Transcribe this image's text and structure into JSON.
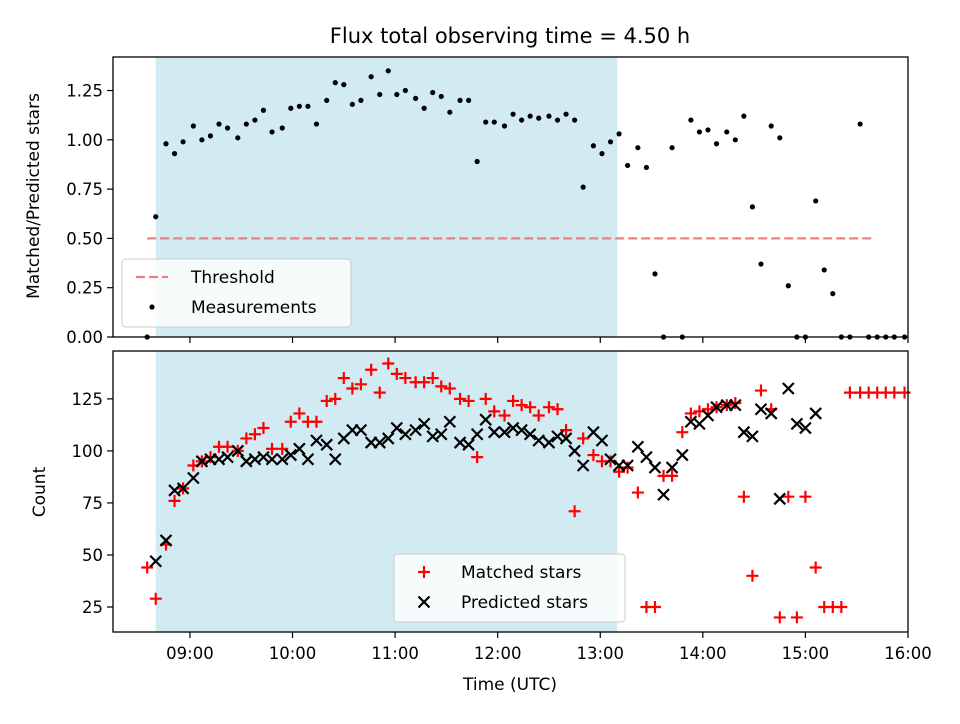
{
  "chart_data": [
    {
      "type": "scatter",
      "title": "Flux total observing time = 4.50 h",
      "ylabel": "Matched/Predicted stars",
      "xlabel": "",
      "ylim": [
        0,
        1.42
      ],
      "y_ticks": [
        "0.00",
        "0.25",
        "0.50",
        "0.75",
        "1.00",
        "1.25"
      ],
      "x_ticks": [
        "09:00",
        "10:00",
        "11:00",
        "12:00",
        "13:00",
        "14:00",
        "15:00",
        "16:00"
      ],
      "x_tick_labels_visible": false,
      "shaded_region": {
        "start": "08:40",
        "end": "13:10",
        "color": "#add8e6"
      },
      "legend": {
        "position": "lower-left",
        "entries": [
          "Threshold",
          "Measurements"
        ]
      },
      "series": [
        {
          "name": "Threshold",
          "kind": "dashed-line",
          "color": "#f08080",
          "points": [
            [
              "08:35",
              0.5
            ],
            [
              "15:40",
              0.5
            ]
          ]
        },
        {
          "name": "Measurements",
          "kind": "scatter",
          "color": "#000000",
          "points": [
            [
              "08:35",
              0.0
            ],
            [
              "08:40",
              0.61
            ],
            [
              "08:46",
              0.98
            ],
            [
              "08:51",
              0.93
            ],
            [
              "08:56",
              0.99
            ],
            [
              "09:02",
              1.07
            ],
            [
              "09:07",
              1.0
            ],
            [
              "09:12",
              1.02
            ],
            [
              "09:17",
              1.08
            ],
            [
              "09:22",
              1.06
            ],
            [
              "09:28",
              1.01
            ],
            [
              "09:33",
              1.08
            ],
            [
              "09:38",
              1.1
            ],
            [
              "09:43",
              1.15
            ],
            [
              "09:48",
              1.04
            ],
            [
              "09:54",
              1.06
            ],
            [
              "09:59",
              1.16
            ],
            [
              "10:04",
              1.17
            ],
            [
              "10:09",
              1.17
            ],
            [
              "10:14",
              1.08
            ],
            [
              "10:20",
              1.2
            ],
            [
              "10:25",
              1.29
            ],
            [
              "10:30",
              1.28
            ],
            [
              "10:35",
              1.18
            ],
            [
              "10:40",
              1.2
            ],
            [
              "10:46",
              1.32
            ],
            [
              "10:51",
              1.23
            ],
            [
              "10:56",
              1.35
            ],
            [
              "11:01",
              1.23
            ],
            [
              "11:06",
              1.25
            ],
            [
              "11:12",
              1.21
            ],
            [
              "11:17",
              1.16
            ],
            [
              "11:22",
              1.24
            ],
            [
              "11:27",
              1.22
            ],
            [
              "11:32",
              1.14
            ],
            [
              "11:38",
              1.2
            ],
            [
              "11:43",
              1.2
            ],
            [
              "11:48",
              0.89
            ],
            [
              "11:53",
              1.09
            ],
            [
              "11:58",
              1.09
            ],
            [
              "12:04",
              1.07
            ],
            [
              "12:09",
              1.13
            ],
            [
              "12:14",
              1.1
            ],
            [
              "12:19",
              1.12
            ],
            [
              "12:24",
              1.11
            ],
            [
              "12:30",
              1.12
            ],
            [
              "12:35",
              1.1
            ],
            [
              "12:40",
              1.13
            ],
            [
              "12:45",
              1.1
            ],
            [
              "12:50",
              0.76
            ],
            [
              "12:56",
              0.97
            ],
            [
              "13:01",
              0.93
            ],
            [
              "13:06",
              0.99
            ],
            [
              "13:11",
              1.03
            ],
            [
              "13:16",
              0.87
            ],
            [
              "13:22",
              0.96
            ],
            [
              "13:27",
              0.86
            ],
            [
              "13:32",
              0.32
            ],
            [
              "13:37",
              0.0
            ],
            [
              "13:42",
              0.96
            ],
            [
              "13:48",
              0.0
            ],
            [
              "13:53",
              1.1
            ],
            [
              "13:58",
              1.04
            ],
            [
              "14:03",
              1.05
            ],
            [
              "14:08",
              0.98
            ],
            [
              "14:14",
              1.04
            ],
            [
              "14:19",
              1.0
            ],
            [
              "14:24",
              1.12
            ],
            [
              "14:29",
              0.66
            ],
            [
              "14:34",
              0.37
            ],
            [
              "14:40",
              1.07
            ],
            [
              "14:45",
              1.01
            ],
            [
              "14:50",
              0.26
            ],
            [
              "14:55",
              0.0
            ],
            [
              "15:00",
              0.0
            ],
            [
              "15:06",
              0.69
            ],
            [
              "15:11",
              0.34
            ],
            [
              "15:16",
              0.22
            ],
            [
              "15:21",
              0.0
            ],
            [
              "15:26",
              0.0
            ],
            [
              "15:32",
              1.08
            ],
            [
              "15:37",
              0.0
            ],
            [
              "15:42",
              0.0
            ],
            [
              "15:47",
              0.0
            ],
            [
              "15:52",
              0.0
            ],
            [
              "15:58",
              0.0
            ]
          ]
        }
      ]
    },
    {
      "type": "scatter",
      "title": "",
      "xlabel": "Time (UTC)",
      "ylabel": "Count",
      "ylim": [
        13,
        148
      ],
      "y_ticks": [
        "25",
        "50",
        "75",
        "100",
        "125"
      ],
      "x_ticks": [
        "09:00",
        "10:00",
        "11:00",
        "12:00",
        "13:00",
        "14:00",
        "15:00",
        "16:00"
      ],
      "shaded_region": {
        "start": "08:40",
        "end": "13:10",
        "color": "#add8e6"
      },
      "legend": {
        "position": "lower-center",
        "entries": [
          "Matched stars",
          "Predicted stars"
        ]
      },
      "series": [
        {
          "name": "Matched stars",
          "kind": "plus-markers",
          "color": "#ff0000",
          "points": [
            [
              "08:35",
              44
            ],
            [
              "08:40",
              29
            ],
            [
              "08:46",
              55
            ],
            [
              "08:51",
              76
            ],
            [
              "08:56",
              82
            ],
            [
              "09:02",
              93
            ],
            [
              "09:07",
              95
            ],
            [
              "09:12",
              97
            ],
            [
              "09:17",
              102
            ],
            [
              "09:22",
              102
            ],
            [
              "09:28",
              100
            ],
            [
              "09:33",
              106
            ],
            [
              "09:38",
              108
            ],
            [
              "09:43",
              111
            ],
            [
              "09:48",
              101
            ],
            [
              "09:54",
              101
            ],
            [
              "09:59",
              114
            ],
            [
              "10:04",
              118
            ],
            [
              "10:09",
              114
            ],
            [
              "10:14",
              114
            ],
            [
              "10:20",
              124
            ],
            [
              "10:25",
              125
            ],
            [
              "10:30",
              135
            ],
            [
              "10:35",
              130
            ],
            [
              "10:40",
              132
            ],
            [
              "10:46",
              139
            ],
            [
              "10:51",
              128
            ],
            [
              "10:56",
              142
            ],
            [
              "11:01",
              137
            ],
            [
              "11:06",
              135
            ],
            [
              "11:12",
              133
            ],
            [
              "11:17",
              133
            ],
            [
              "11:22",
              135
            ],
            [
              "11:27",
              131
            ],
            [
              "11:32",
              130
            ],
            [
              "11:38",
              125
            ],
            [
              "11:43",
              124
            ],
            [
              "11:48",
              97
            ],
            [
              "11:53",
              125
            ],
            [
              "11:58",
              119
            ],
            [
              "12:04",
              117
            ],
            [
              "12:09",
              124
            ],
            [
              "12:14",
              122
            ],
            [
              "12:19",
              121
            ],
            [
              "12:24",
              117
            ],
            [
              "12:30",
              121
            ],
            [
              "12:35",
              120
            ],
            [
              "12:40",
              110
            ],
            [
              "12:45",
              71
            ],
            [
              "12:50",
              106
            ],
            [
              "12:56",
              98
            ],
            [
              "13:01",
              95
            ],
            [
              "13:06",
              95
            ],
            [
              "13:11",
              90
            ],
            [
              "13:16",
              92
            ],
            [
              "13:22",
              80
            ],
            [
              "13:27",
              25
            ],
            [
              "13:32",
              25
            ],
            [
              "13:37",
              88
            ],
            [
              "13:42",
              88
            ],
            [
              "13:48",
              109
            ],
            [
              "13:53",
              118
            ],
            [
              "13:58",
              119
            ],
            [
              "14:03",
              120
            ],
            [
              "14:08",
              121
            ],
            [
              "14:14",
              122
            ],
            [
              "14:19",
              123
            ],
            [
              "14:24",
              78
            ],
            [
              "14:29",
              40
            ],
            [
              "14:34",
              129
            ],
            [
              "14:40",
              120
            ],
            [
              "14:45",
              20
            ],
            [
              "14:50",
              78
            ],
            [
              "14:55",
              20
            ],
            [
              "15:00",
              78
            ],
            [
              "15:06",
              44
            ],
            [
              "15:11",
              25
            ],
            [
              "15:16",
              25
            ],
            [
              "15:21",
              25
            ],
            [
              "15:26",
              128
            ],
            [
              "15:32",
              128
            ],
            [
              "15:37",
              128
            ],
            [
              "15:42",
              128
            ],
            [
              "15:47",
              128
            ],
            [
              "15:52",
              128
            ],
            [
              "15:58",
              128
            ]
          ]
        },
        {
          "name": "Predicted stars",
          "kind": "x-markers",
          "color": "#000000",
          "points": [
            [
              "08:40",
              47
            ],
            [
              "08:46",
              57
            ],
            [
              "08:51",
              81
            ],
            [
              "08:56",
              82
            ],
            [
              "09:02",
              87
            ],
            [
              "09:07",
              95
            ],
            [
              "09:12",
              96
            ],
            [
              "09:17",
              96
            ],
            [
              "09:22",
              97
            ],
            [
              "09:28",
              100
            ],
            [
              "09:33",
              95
            ],
            [
              "09:38",
              96
            ],
            [
              "09:43",
              97
            ],
            [
              "09:48",
              96
            ],
            [
              "09:54",
              96
            ],
            [
              "09:59",
              98
            ],
            [
              "10:04",
              101
            ],
            [
              "10:09",
              96
            ],
            [
              "10:14",
              105
            ],
            [
              "10:20",
              103
            ],
            [
              "10:25",
              96
            ],
            [
              "10:30",
              106
            ],
            [
              "10:35",
              110
            ],
            [
              "10:40",
              110
            ],
            [
              "10:46",
              104
            ],
            [
              "10:51",
              104
            ],
            [
              "10:56",
              106
            ],
            [
              "11:01",
              111
            ],
            [
              "11:06",
              108
            ],
            [
              "11:12",
              110
            ],
            [
              "11:17",
              113
            ],
            [
              "11:22",
              107
            ],
            [
              "11:27",
              108
            ],
            [
              "11:32",
              114
            ],
            [
              "11:38",
              104
            ],
            [
              "11:43",
              103
            ],
            [
              "11:48",
              108
            ],
            [
              "11:53",
              115
            ],
            [
              "11:58",
              109
            ],
            [
              "12:04",
              109
            ],
            [
              "12:09",
              111
            ],
            [
              "12:14",
              110
            ],
            [
              "12:19",
              108
            ],
            [
              "12:24",
              105
            ],
            [
              "12:30",
              104
            ],
            [
              "12:35",
              107
            ],
            [
              "12:40",
              106
            ],
            [
              "12:45",
              100
            ],
            [
              "12:50",
              93
            ],
            [
              "12:56",
              109
            ],
            [
              "13:01",
              105
            ],
            [
              "13:06",
              96
            ],
            [
              "13:11",
              93
            ],
            [
              "13:16",
              93
            ],
            [
              "13:22",
              102
            ],
            [
              "13:27",
              97
            ],
            [
              "13:32",
              92
            ],
            [
              "13:37",
              79
            ],
            [
              "13:42",
              92
            ],
            [
              "13:48",
              98
            ],
            [
              "13:53",
              114
            ],
            [
              "13:58",
              113
            ],
            [
              "14:03",
              117
            ],
            [
              "14:08",
              121
            ],
            [
              "14:14",
              122
            ],
            [
              "14:19",
              122
            ],
            [
              "14:24",
              109
            ],
            [
              "14:29",
              107
            ],
            [
              "14:34",
              120
            ],
            [
              "14:40",
              118
            ],
            [
              "14:45",
              77
            ],
            [
              "14:50",
              130
            ],
            [
              "14:55",
              113
            ],
            [
              "15:00",
              111
            ],
            [
              "15:06",
              118
            ]
          ]
        }
      ]
    }
  ]
}
